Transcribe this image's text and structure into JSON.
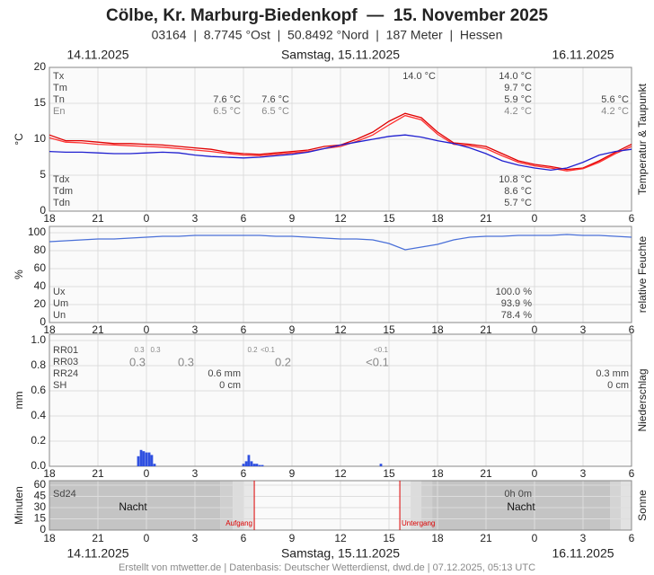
{
  "header": {
    "title": "Cölbe, Kr. Marburg-Biedenkopf  —  15. November 2025",
    "subtitle": "03164  |  8.7745 °Ost  |  50.8492 °Nord  |  187 Meter  |  Hessen",
    "dates": [
      "14.11.2025",
      "Samstag, 15.11.2025",
      "16.11.2025"
    ],
    "footer": "Erstellt von mtwetter.de | Datenbasis: Deutscher Wetterdienst, dwd.de | 07.12.2025, 05:13 UTC"
  },
  "chart_data": [
    {
      "type": "line",
      "ylabel": "°C",
      "right_label": "Temperatur & Taupunkt",
      "xlim": [
        0,
        36
      ],
      "xticks": [
        {
          "value": 0,
          "label": "18"
        },
        {
          "value": 3,
          "label": "21"
        },
        {
          "value": 6,
          "label": "0"
        },
        {
          "value": 9,
          "label": "3"
        },
        {
          "value": 12,
          "label": "6"
        },
        {
          "value": 15,
          "label": "9"
        },
        {
          "value": 18,
          "label": "12"
        },
        {
          "value": 21,
          "label": "15"
        },
        {
          "value": 24,
          "label": "18"
        },
        {
          "value": 27,
          "label": "21"
        },
        {
          "value": 30,
          "label": "0"
        },
        {
          "value": 33,
          "label": "3"
        },
        {
          "value": 36,
          "label": "6"
        }
      ],
      "ylim": [
        0,
        20
      ],
      "yticks": [
        0,
        5,
        10,
        15,
        20
      ],
      "x": [
        0,
        1,
        2,
        3,
        4,
        5,
        6,
        7,
        8,
        9,
        10,
        11,
        12,
        13,
        14,
        15,
        16,
        17,
        18,
        19,
        20,
        21,
        22,
        23,
        24,
        25,
        26,
        27,
        28,
        29,
        30,
        31,
        32,
        33,
        34,
        35,
        36
      ],
      "series": [
        {
          "color": "#e00000",
          "values": [
            10.6,
            9.8,
            9.8,
            9.6,
            9.4,
            9.4,
            9.3,
            9.2,
            9.0,
            8.8,
            8.6,
            8.2,
            8.0,
            7.9,
            8.1,
            8.3,
            8.5,
            9.0,
            9.2,
            10.0,
            11.0,
            12.5,
            13.6,
            13.0,
            11.0,
            9.5,
            9.3,
            9.0,
            8.0,
            7.0,
            6.5,
            6.2,
            5.8,
            6.0,
            7.0,
            8.2,
            9.3
          ]
        },
        {
          "color": "#ff3030",
          "values": [
            10.2,
            9.6,
            9.5,
            9.3,
            9.2,
            9.1,
            9.0,
            8.9,
            8.7,
            8.5,
            8.3,
            8.0,
            7.8,
            7.7,
            7.9,
            8.1,
            8.3,
            8.7,
            9.0,
            9.7,
            10.6,
            12.0,
            13.3,
            12.7,
            10.7,
            9.3,
            9.1,
            8.7,
            7.7,
            6.8,
            6.3,
            6.0,
            5.6,
            5.9,
            6.8,
            8.0,
            9.0
          ]
        },
        {
          "color": "#2020d0",
          "values": [
            8.3,
            8.2,
            8.2,
            8.1,
            8.0,
            8.0,
            8.1,
            8.2,
            8.1,
            7.8,
            7.6,
            7.5,
            7.4,
            7.5,
            7.7,
            7.9,
            8.2,
            8.7,
            9.2,
            9.6,
            10.0,
            10.4,
            10.6,
            10.3,
            9.8,
            9.4,
            8.8,
            8.0,
            7.0,
            6.4,
            6.0,
            5.7,
            6.0,
            6.8,
            7.8,
            8.3,
            8.6
          ]
        }
      ],
      "annotations": [
        "Tx",
        "Tm",
        "Tn",
        "En",
        "14.0 °C",
        "14.0 °C",
        "9.7 °C",
        "7.6 °C",
        "7.6 °C",
        "5.9 °C",
        "5.6 °C",
        "6.5 °C",
        "6.5 °C",
        "4.2 °C",
        "4.2 °C",
        "Tdx",
        "Tdm",
        "Tdn",
        "10.8 °C",
        "8.6 °C",
        "5.7 °C"
      ]
    },
    {
      "type": "line",
      "ylabel": "%",
      "right_label": "relative Feuchte",
      "xlim": [
        0,
        36
      ],
      "xticks": [
        {
          "value": 0,
          "label": "18"
        },
        {
          "value": 3,
          "label": "21"
        },
        {
          "value": 6,
          "label": "0"
        },
        {
          "value": 9,
          "label": "3"
        },
        {
          "value": 12,
          "label": "6"
        },
        {
          "value": 15,
          "label": "9"
        },
        {
          "value": 18,
          "label": "12"
        },
        {
          "value": 21,
          "label": "15"
        },
        {
          "value": 24,
          "label": "18"
        },
        {
          "value": 27,
          "label": "21"
        },
        {
          "value": 30,
          "label": "0"
        },
        {
          "value": 33,
          "label": "3"
        },
        {
          "value": 36,
          "label": "6"
        }
      ],
      "ylim": [
        0,
        100
      ],
      "yticks": [
        0,
        20,
        40,
        60,
        80,
        100
      ],
      "x": [
        0,
        1,
        2,
        3,
        4,
        5,
        6,
        7,
        8,
        9,
        10,
        11,
        12,
        13,
        14,
        15,
        16,
        17,
        18,
        19,
        20,
        21,
        22,
        23,
        24,
        25,
        26,
        27,
        28,
        29,
        30,
        31,
        32,
        33,
        34,
        35,
        36
      ],
      "series": [
        {
          "color": "#4a70d8",
          "values": [
            90,
            91,
            92,
            93,
            93,
            94,
            95,
            96,
            96,
            97,
            97,
            97,
            97,
            97,
            96,
            96,
            95,
            94,
            93,
            93,
            92,
            88,
            81,
            84,
            87,
            92,
            95,
            96,
            96,
            97,
            97,
            97,
            98,
            97,
            97,
            96,
            95
          ]
        }
      ],
      "annotations": [
        "Ux",
        "Um",
        "Un",
        "100.0 %",
        "93.9 %",
        "78.4 %"
      ]
    },
    {
      "type": "bar",
      "ylabel": "mm",
      "right_label": "Niederschlag",
      "xlim": [
        0,
        36
      ],
      "xticks": [
        {
          "value": 0,
          "label": "18"
        },
        {
          "value": 3,
          "label": "21"
        },
        {
          "value": 6,
          "label": "0"
        },
        {
          "value": 9,
          "label": "3"
        },
        {
          "value": 12,
          "label": "6"
        },
        {
          "value": 15,
          "label": "9"
        },
        {
          "value": 18,
          "label": "12"
        },
        {
          "value": 21,
          "label": "15"
        },
        {
          "value": 24,
          "label": "18"
        },
        {
          "value": 27,
          "label": "21"
        },
        {
          "value": 30,
          "label": "0"
        },
        {
          "value": 33,
          "label": "3"
        },
        {
          "value": 36,
          "label": "6"
        }
      ],
      "ylim": [
        0,
        1
      ],
      "yticks": [
        {
          "value": 0,
          "label": "0.0"
        },
        0.2,
        0.4,
        0.6,
        0.8,
        {
          "value": 1,
          "label": "1.0"
        }
      ],
      "color": "#3050e0",
      "x": [
        5.5,
        5.67,
        5.83,
        6.0,
        6.17,
        6.33,
        6.5,
        12.0,
        12.17,
        12.33,
        12.5,
        12.67,
        12.83,
        13.0,
        13.17,
        20.5
      ],
      "values": [
        0.08,
        0.13,
        0.12,
        0.11,
        0.11,
        0.09,
        0.02,
        0.02,
        0.04,
        0.09,
        0.04,
        0.02,
        0.02,
        0.01,
        0.01,
        0.02
      ],
      "annotations": [
        "RR01",
        "RR03",
        "RR24",
        "SH",
        "0.3",
        "0.3",
        "0.2",
        "<0.1",
        "<0.1",
        "0.3",
        "0.3",
        "0.2",
        "<0.1",
        "0.6 mm",
        "0.3 mm",
        "0 cm",
        "0 cm"
      ]
    },
    {
      "type": "daylight",
      "ylabel": "Minuten",
      "right_label": "Sonne",
      "xlim": [
        0,
        36
      ],
      "xticks": [
        {
          "value": 0,
          "label": "18"
        },
        {
          "value": 3,
          "label": "21"
        },
        {
          "value": 6,
          "label": "0"
        },
        {
          "value": 9,
          "label": "3"
        },
        {
          "value": 12,
          "label": "6"
        },
        {
          "value": 15,
          "label": "9"
        },
        {
          "value": 18,
          "label": "12"
        },
        {
          "value": 21,
          "label": "15"
        },
        {
          "value": 24,
          "label": "18"
        },
        {
          "value": 27,
          "label": "21"
        },
        {
          "value": 30,
          "label": "0"
        },
        {
          "value": 33,
          "label": "3"
        },
        {
          "value": 36,
          "label": "6"
        }
      ],
      "ylim": [
        0,
        60
      ],
      "yticks": [
        0,
        15,
        30,
        45,
        60
      ],
      "sunrise": 12.67,
      "sunset": 21.67,
      "annotations": [
        "Sd24",
        "0h 0m",
        "Nacht",
        "Nacht",
        "Aufgang",
        "Untergang"
      ]
    }
  ]
}
